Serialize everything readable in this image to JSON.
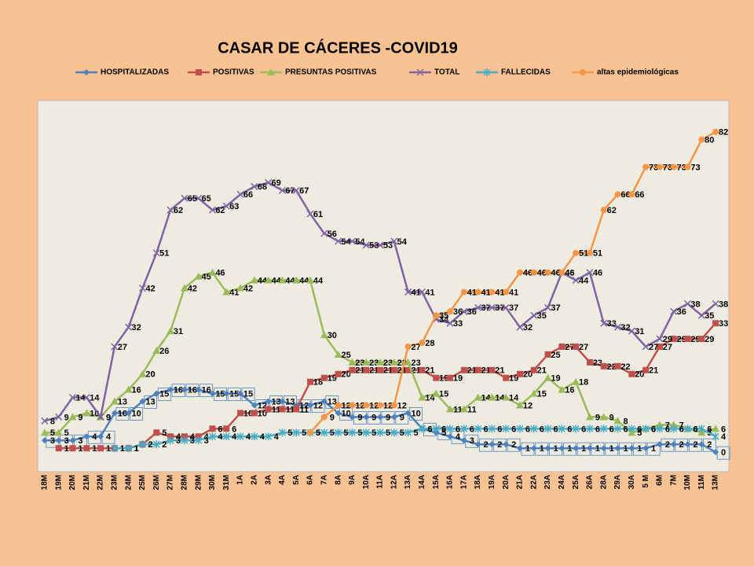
{
  "chart_data": {
    "type": "line",
    "title": "CASAR DE CÁCERES -COVID19",
    "categories": [
      "18M",
      "19M",
      "20M",
      "21M",
      "22M",
      "23M",
      "24M",
      "25M",
      "26M",
      "27M",
      "28M",
      "29M",
      "30M",
      "31M",
      "1A",
      "2A",
      "3A",
      "4A",
      "5A",
      "6A",
      "7A",
      "8A",
      "9A",
      "10A",
      "11A",
      "12A",
      "13A",
      "14A",
      "15A",
      "16A",
      "17A",
      "18A",
      "19A",
      "20A",
      "21A",
      "22A",
      "23A",
      "24A",
      "25A",
      "26A",
      "28A",
      "29A",
      "30A",
      "5 M",
      "6M",
      "7M",
      "10M",
      "11M",
      "13M"
    ],
    "ylim": [
      -5,
      90
    ],
    "legend": "top",
    "series": [
      {
        "name": "HOSPITALIZADAS",
        "color": "#4f81bd",
        "marker": "diamond",
        "values": [
          3,
          3,
          3,
          4,
          4,
          10,
          10,
          13,
          15,
          16,
          16,
          16,
          15,
          15,
          15,
          12,
          13,
          13,
          12,
          12,
          13,
          10,
          9,
          9,
          9,
          9,
          10,
          6,
          5,
          4,
          3,
          2,
          2,
          2,
          1,
          1,
          1,
          1,
          1,
          1,
          1,
          1,
          1,
          1,
          2,
          2,
          2,
          2,
          0
        ]
      },
      {
        "name": "POSITIVAS",
        "color": "#c0504d",
        "marker": "square",
        "values": [
          null,
          1,
          1,
          1,
          1,
          1,
          1,
          2,
          5,
          4,
          4,
          4,
          6,
          6,
          10,
          10,
          11,
          11,
          11,
          18,
          19,
          20,
          21,
          21,
          21,
          21,
          21,
          21,
          19,
          19,
          21,
          21,
          21,
          19,
          20,
          21,
          25,
          27,
          27,
          23,
          22,
          22,
          20,
          21,
          27,
          29,
          29,
          29,
          33
        ]
      },
      {
        "name": "PRESUNTAS POSITIVAS",
        "color": "#9bbb59",
        "marker": "triangle",
        "values": [
          5,
          5,
          9,
          10,
          9,
          13,
          16,
          20,
          26,
          31,
          42,
          45,
          46,
          41,
          42,
          44,
          44,
          44,
          44,
          44,
          30,
          25,
          23,
          23,
          23,
          23,
          23,
          14,
          15,
          11,
          11,
          14,
          14,
          14,
          12,
          15,
          19,
          16,
          18,
          9,
          9,
          8,
          5,
          6,
          7,
          7,
          6,
          5,
          6
        ]
      },
      {
        "name": "TOTAL",
        "color": "#8064a2",
        "marker": "x",
        "values": [
          8,
          9,
          14,
          14,
          9,
          27,
          32,
          42,
          51,
          62,
          65,
          65,
          62,
          63,
          66,
          68,
          69,
          67,
          67,
          61,
          56,
          54,
          54,
          53,
          53,
          54,
          41,
          41,
          34,
          33,
          36,
          37,
          37,
          37,
          32,
          35,
          37,
          46,
          44,
          46,
          33,
          32,
          31,
          27,
          29,
          36,
          38,
          35,
          38
        ]
      },
      {
        "name": "FALLECIDAS",
        "color": "#4bacc6",
        "marker": "star",
        "values": [
          null,
          null,
          null,
          null,
          null,
          1,
          1,
          2,
          2,
          3,
          3,
          3,
          4,
          4,
          4,
          4,
          4,
          5,
          5,
          5,
          5,
          5,
          5,
          5,
          5,
          5,
          5,
          6,
          6,
          6,
          6,
          6,
          6,
          6,
          6,
          6,
          6,
          6,
          6,
          6,
          6,
          6,
          6,
          6,
          6,
          6,
          6,
          6,
          4
        ]
      },
      {
        "name": "altas epidemiológicas",
        "color": "#f79646",
        "marker": "circle",
        "values": [
          null,
          null,
          null,
          null,
          null,
          null,
          null,
          null,
          null,
          null,
          null,
          null,
          null,
          null,
          null,
          null,
          null,
          null,
          null,
          5,
          9,
          12,
          12,
          12,
          12,
          12,
          27,
          28,
          35,
          36,
          41,
          41,
          41,
          41,
          46,
          46,
          46,
          46,
          51,
          51,
          62,
          66,
          66,
          73,
          73,
          73,
          73,
          80,
          82
        ]
      }
    ]
  }
}
